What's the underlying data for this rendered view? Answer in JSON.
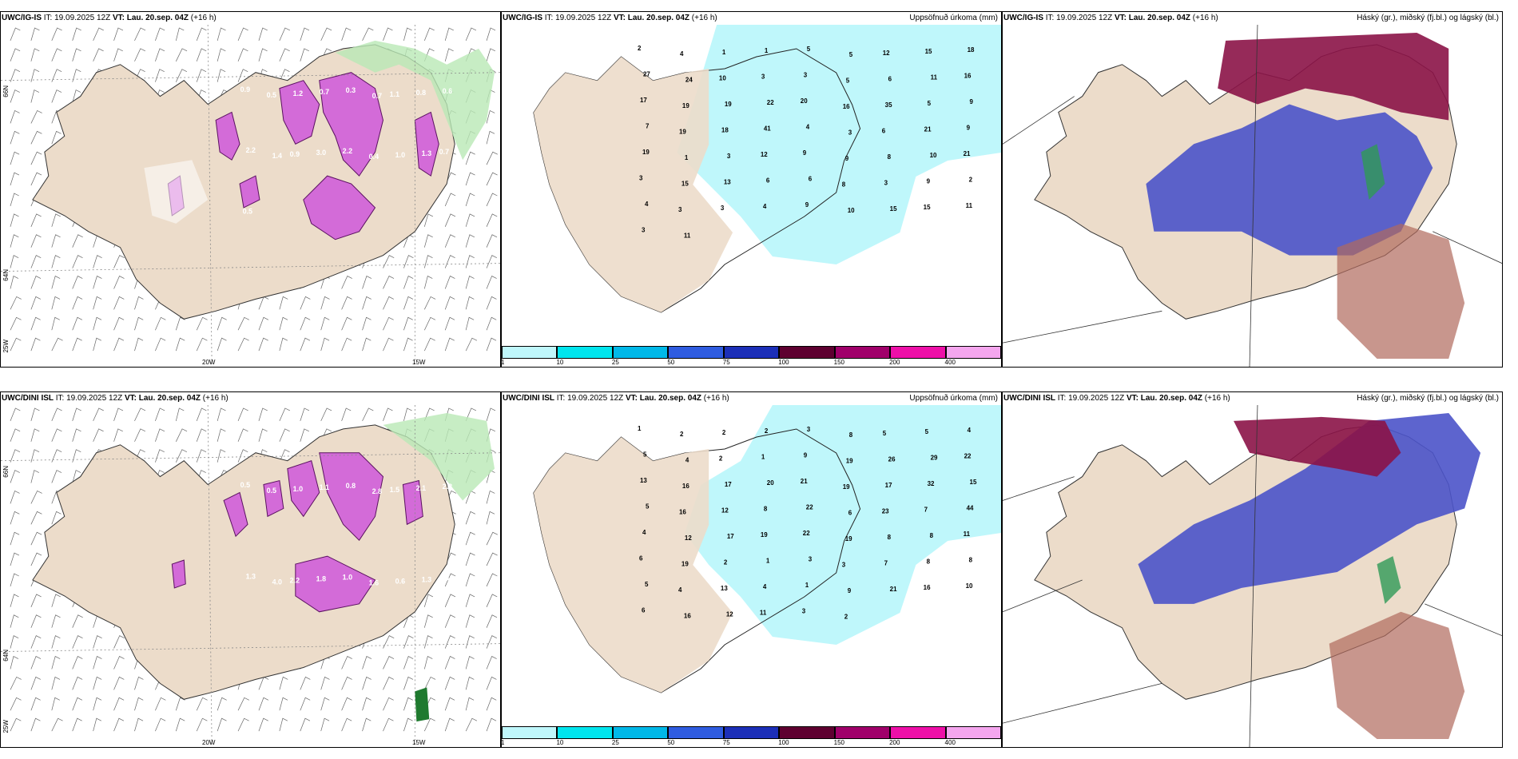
{
  "common": {
    "init_time": "IT: 19.09.2025 12Z",
    "valid_time": "VT: Lau. 20.sep. 04Z",
    "lead": "(+16 h)"
  },
  "panels": [
    {
      "model": "UWC/IG-IS",
      "right_title": "",
      "type": "precip_wind"
    },
    {
      "model": "UWC/IG-IS",
      "right_title": "Uppsöfnuð úrkoma (mm)",
      "type": "accum"
    },
    {
      "model": "UWC/IG-IS",
      "right_title": "Háský (gr.), miðský (fj.bl.) og lágský (bl.)",
      "type": "cloud"
    },
    {
      "model": "UWC/DINI ISL",
      "right_title": "",
      "type": "precip_wind"
    },
    {
      "model": "UWC/DINI ISL",
      "right_title": "Uppsöfnuð úrkoma (mm)",
      "type": "accum"
    },
    {
      "model": "UWC/DINI ISL",
      "right_title": "Háský (gr.), miðský (fj.bl.) og lágský (bl.)",
      "type": "cloud"
    }
  ],
  "axis_labels": {
    "lat_66": "66N",
    "lat_64": "64N",
    "lon_25": "25W",
    "lon_20": "20W",
    "lon_15": "15W"
  },
  "colorbar": {
    "ticks": [
      "1",
      "10",
      "25",
      "50",
      "75",
      "100",
      "150",
      "200",
      "400"
    ],
    "colors": [
      "#bff7fb",
      "#00e5ee",
      "#00b8e8",
      "#2f5ce0",
      "#1c2fb8",
      "#5e0030",
      "#a0006a",
      "#ee10a8",
      "#f4a6ee"
    ]
  },
  "accum_labels_ig": [
    "2",
    "4",
    "1",
    "1",
    "5",
    "5",
    "12",
    "15",
    "18",
    "27",
    "24",
    "10",
    "3",
    "3",
    "5",
    "6",
    "11",
    "16",
    "17",
    "19",
    "19",
    "22",
    "20",
    "16",
    "35",
    "5",
    "9",
    "7",
    "19",
    "18",
    "41",
    "4",
    "3",
    "6",
    "21",
    "9",
    "19",
    "1",
    "3",
    "12",
    "9",
    "9",
    "8",
    "10",
    "21",
    "3",
    "15",
    "13",
    "6",
    "6",
    "8",
    "3",
    "9",
    "2",
    "4",
    "3",
    "3",
    "4",
    "9",
    "10",
    "15",
    "15",
    "11",
    "3",
    "11"
  ],
  "accum_labels_dini": [
    "1",
    "2",
    "2",
    "2",
    "3",
    "8",
    "5",
    "5",
    "4",
    "5",
    "4",
    "2",
    "1",
    "9",
    "19",
    "26",
    "29",
    "22",
    "13",
    "16",
    "17",
    "20",
    "21",
    "19",
    "17",
    "32",
    "15",
    "5",
    "16",
    "12",
    "8",
    "22",
    "6",
    "23",
    "7",
    "44",
    "4",
    "12",
    "17",
    "19",
    "22",
    "19",
    "8",
    "8",
    "11",
    "6",
    "19",
    "2",
    "1",
    "3",
    "3",
    "7",
    "8",
    "8",
    "5",
    "4",
    "13",
    "4",
    "1",
    "9",
    "21",
    "16",
    "10",
    "6",
    "16",
    "12",
    "11",
    "3",
    "2"
  ],
  "precip_labels_ig": [
    "0.9",
    "0.5",
    "1.2",
    "0.7",
    "0.3",
    "0.7",
    "1.1",
    "0.8",
    "0.6",
    "2.2",
    "1.4",
    "0.9",
    "3.0",
    "2.2",
    "0.4",
    "1.0",
    "1.3",
    "0.7",
    "0.5"
  ],
  "precip_labels_dini": [
    "0.5",
    "0.5",
    "1.0",
    "1.1",
    "0.8",
    "2.8",
    "1.5",
    "2.1",
    "2.2",
    "1.3",
    "4.0",
    "2.2",
    "1.8",
    "1.0",
    "1.6",
    "0.6",
    "1.3",
    "0.5"
  ]
}
